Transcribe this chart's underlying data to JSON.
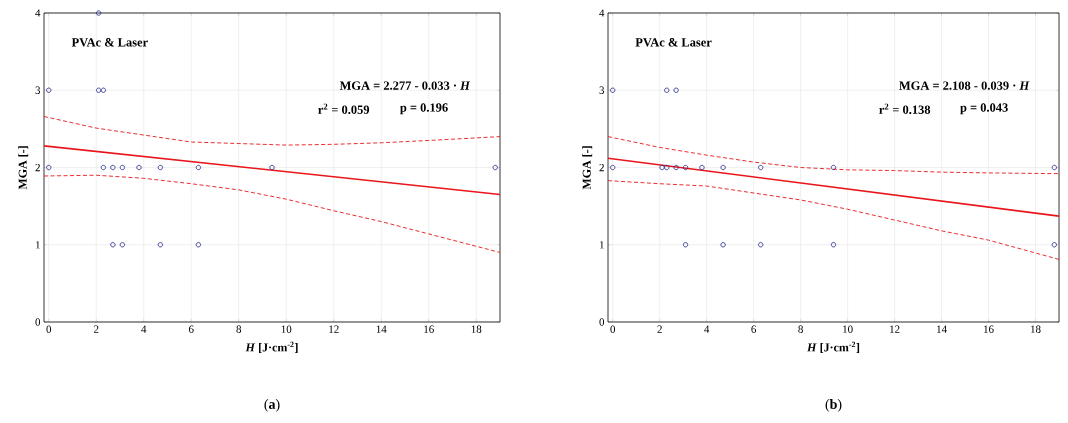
{
  "chart_data": [
    {
      "type": "scatter",
      "xlabel": "*H*  [J·cm$^{-2}$]",
      "ylabel": "MGA [-]",
      "annotations": [
        "PVAc & Laser",
        "MGA = 2.277 - 0.033 · *H*",
        "r$^{2}$ = 0.059",
        "p = 0.196",
        "(**a**)"
      ],
      "xlim": [
        -0.2,
        19
      ],
      "ylim": [
        0,
        4
      ],
      "xticks": [
        0,
        2,
        4,
        6,
        8,
        10,
        12,
        14,
        16,
        18
      ],
      "yticks": [
        0,
        1,
        2,
        3,
        4
      ],
      "grid": true,
      "series": [
        {
          "marker": "circle",
          "color": "#2e3192",
          "x": [
            0,
            0,
            2.1,
            2.1,
            2.3,
            2.3,
            2.7,
            2.7,
            3.1,
            3.1,
            3.8,
            4.7,
            4.7,
            6.3,
            6.3,
            9.4,
            18.8
          ],
          "values": [
            3,
            2,
            4,
            3,
            3,
            2,
            2,
            1,
            2,
            1,
            2,
            2,
            1,
            2,
            1,
            2,
            2
          ]
        },
        {
          "type": "line",
          "line_style": "solid",
          "color": "#e8161b",
          "x": [
            -0.2,
            19
          ],
          "values": [
            2.28,
            1.65
          ]
        },
        {
          "type": "line",
          "line_style": "dashed",
          "color": "#e8161b",
          "x": [
            -0.2,
            2,
            4,
            6,
            8,
            10,
            12,
            14,
            16,
            19
          ],
          "values": [
            2.66,
            2.51,
            2.42,
            2.33,
            2.31,
            2.29,
            2.3,
            2.32,
            2.35,
            2.4
          ]
        },
        {
          "type": "line",
          "line_style": "dashed",
          "color": "#e8161b",
          "x": [
            -0.2,
            2,
            4,
            6,
            8,
            10,
            12,
            14,
            16,
            19
          ],
          "values": [
            1.89,
            1.9,
            1.86,
            1.79,
            1.71,
            1.59,
            1.44,
            1.3,
            1.14,
            0.9
          ]
        }
      ]
    },
    {
      "type": "scatter",
      "xlabel": "*H*  [J·cm$^{-2}$]",
      "ylabel": "MGA [-]",
      "annotations": [
        "PVAc & Laser",
        "MGA = 2.108 - 0.039 · *H*",
        "r$^{2}$ = 0.138",
        "p = 0.043",
        "(**b**)"
      ],
      "xlim": [
        -0.2,
        19
      ],
      "ylim": [
        0,
        4
      ],
      "xticks": [
        0,
        2,
        4,
        6,
        8,
        10,
        12,
        14,
        16,
        18
      ],
      "yticks": [
        0,
        1,
        2,
        3,
        4
      ],
      "grid": true,
      "series": [
        {
          "marker": "circle",
          "color": "#2e3192",
          "x": [
            0,
            0,
            2.1,
            2.3,
            2.3,
            2.7,
            2.7,
            3.1,
            3.1,
            3.8,
            4.7,
            4.7,
            6.3,
            6.3,
            9.4,
            9.4,
            18.8,
            18.8
          ],
          "values": [
            3,
            2,
            2,
            3,
            2,
            3,
            2,
            2,
            1,
            2,
            2,
            1,
            2,
            1,
            2,
            1,
            2,
            1
          ]
        },
        {
          "type": "line",
          "line_style": "solid",
          "color": "#e8161b",
          "x": [
            -0.2,
            19
          ],
          "values": [
            2.12,
            1.37
          ]
        },
        {
          "type": "line",
          "line_style": "dashed",
          "color": "#e8161b",
          "x": [
            -0.2,
            2,
            4,
            6,
            8,
            10,
            12,
            14,
            16,
            19
          ],
          "values": [
            2.4,
            2.26,
            2.16,
            2.07,
            2.0,
            1.97,
            1.96,
            1.94,
            1.93,
            1.92
          ]
        },
        {
          "type": "line",
          "line_style": "dashed",
          "color": "#e8161b",
          "x": [
            -0.2,
            2,
            4,
            6,
            8,
            10,
            12,
            14,
            16,
            19
          ],
          "values": [
            1.83,
            1.79,
            1.76,
            1.67,
            1.58,
            1.46,
            1.32,
            1.18,
            1.06,
            0.81
          ]
        }
      ]
    }
  ]
}
